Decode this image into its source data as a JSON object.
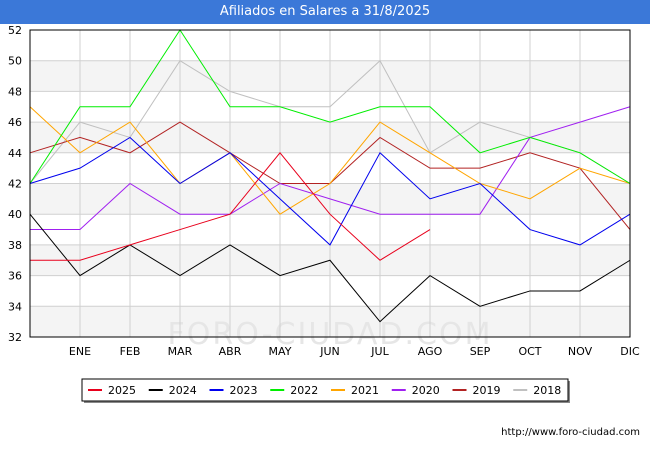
{
  "title": "Afiliados en Salares a 31/8/2025",
  "source": "http://www.foro-ciudad.com",
  "watermark": "FORO-CIUDAD.COM",
  "chart_data": {
    "type": "line",
    "title": "Afiliados en Salares a 31/8/2025",
    "xlabel": "",
    "ylabel": "",
    "x_ticks": [
      "ENE",
      "FEB",
      "MAR",
      "ABR",
      "MAY",
      "JUN",
      "JUL",
      "AGO",
      "SEP",
      "OCT",
      "NOV",
      "DIC"
    ],
    "ylim": [
      32,
      52
    ],
    "y_ticks": [
      32,
      34,
      36,
      38,
      40,
      42,
      44,
      46,
      48,
      50,
      52
    ],
    "grid": "both",
    "legend_position": "bottom",
    "series": [
      {
        "name": "2025",
        "color": "#e8001c",
        "values": [
          37,
          37,
          38,
          39,
          40,
          44,
          40,
          37,
          39
        ]
      },
      {
        "name": "2024",
        "color": "#000000",
        "values": [
          40,
          36,
          38,
          36,
          38,
          36,
          37,
          33,
          36,
          34,
          35,
          35,
          37
        ]
      },
      {
        "name": "2023",
        "color": "#0000ee",
        "values": [
          42,
          43,
          45,
          42,
          44,
          41,
          38,
          44,
          41,
          42,
          39,
          38,
          40
        ]
      },
      {
        "name": "2022",
        "color": "#00ee00",
        "values": [
          42,
          47,
          47,
          52,
          47,
          47,
          46,
          47,
          47,
          44,
          45,
          44,
          42
        ]
      },
      {
        "name": "2021",
        "color": "#ffa500",
        "values": [
          47,
          44,
          46,
          42,
          44,
          40,
          42,
          46,
          44,
          42,
          41,
          43,
          42
        ]
      },
      {
        "name": "2020",
        "color": "#a020f0",
        "values": [
          39,
          39,
          42,
          40,
          40,
          42,
          41,
          40,
          40,
          40,
          45,
          46,
          47
        ]
      },
      {
        "name": "2019",
        "color": "#b22222",
        "values": [
          44,
          45,
          44,
          46,
          44,
          42,
          42,
          45,
          43,
          43,
          44,
          43,
          39
        ]
      },
      {
        "name": "2018",
        "color": "#c0c0c0",
        "values": [
          42,
          46,
          45,
          50,
          48,
          47,
          47,
          50,
          44,
          46,
          45,
          44,
          42
        ]
      }
    ]
  }
}
